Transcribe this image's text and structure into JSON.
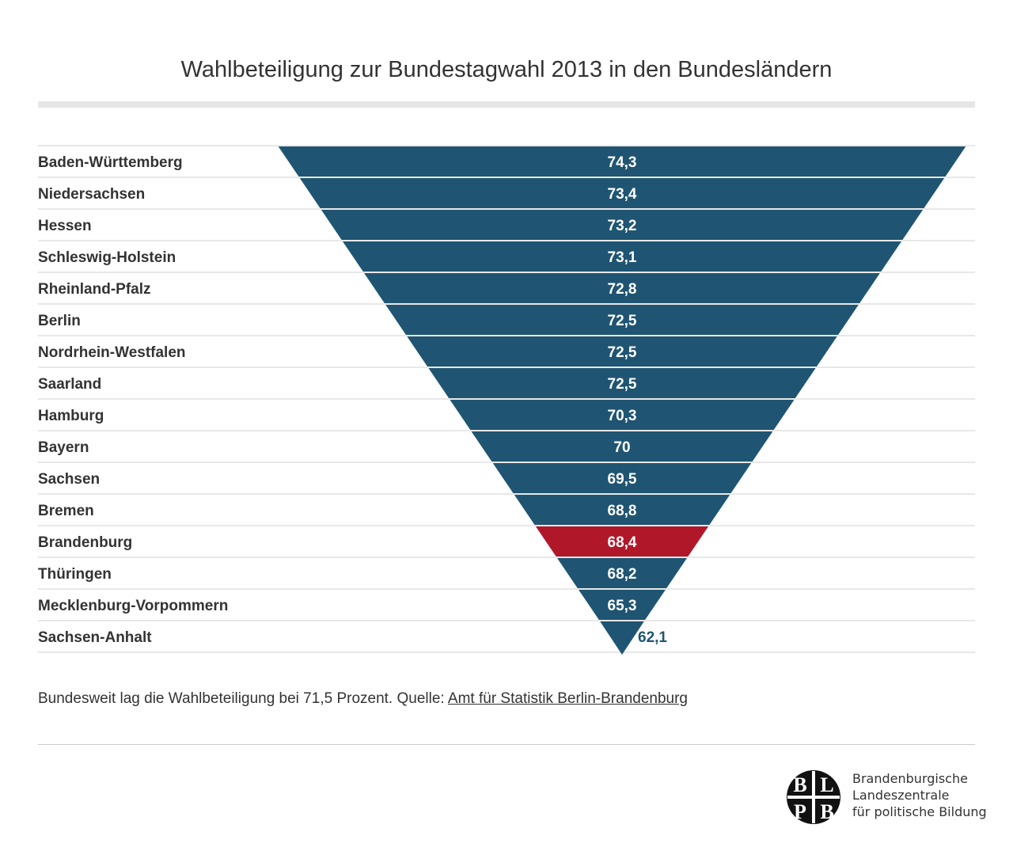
{
  "title": "Wahlbeteiligung zur Bundestagwahl 2013 in den Bundesländern",
  "colors": {
    "bar": "#1f5572",
    "highlight": "#b0182a",
    "label_outside": "#1f5572"
  },
  "chart_data": {
    "type": "bar",
    "orientation": "horizontal-centered (inverted pyramid)",
    "categories": [
      "Baden-Württemberg",
      "Niedersachsen",
      "Hessen",
      "Schleswig-Holstein",
      "Rheinland-Pfalz",
      "Berlin",
      "Nordrhein-Westfalen",
      "Saarland",
      "Hamburg",
      "Bayern",
      "Sachsen",
      "Bremen",
      "Brandenburg",
      "Thüringen",
      "Mecklenburg-Vorpommern",
      "Sachsen-Anhalt"
    ],
    "values": [
      74.3,
      73.4,
      73.2,
      73.1,
      72.8,
      72.5,
      72.5,
      72.5,
      70.3,
      70,
      69.5,
      68.8,
      68.4,
      68.2,
      65.3,
      62.1
    ],
    "value_labels": [
      "74,3",
      "73,4",
      "73,2",
      "73,1",
      "72,8",
      "72,5",
      "72,5",
      "72,5",
      "70,3",
      "70",
      "69,5",
      "68,8",
      "68,4",
      "68,2",
      "65,3",
      "62,1"
    ],
    "highlight": "Brandenburg",
    "title": "Wahlbeteiligung zur Bundestagwahl 2013 in den Bundesländern"
  },
  "note": {
    "text": "Bundesweit lag die Wahlbeteiligung bei 71,5 Prozent. Quelle: ",
    "link": "Amt für Statistik Berlin-Brandenburg"
  },
  "logo": {
    "letters": [
      "B",
      "L",
      "P",
      "B"
    ],
    "lines": [
      "Brandenburgische",
      "Landeszentrale",
      "für politische Bildung"
    ]
  }
}
